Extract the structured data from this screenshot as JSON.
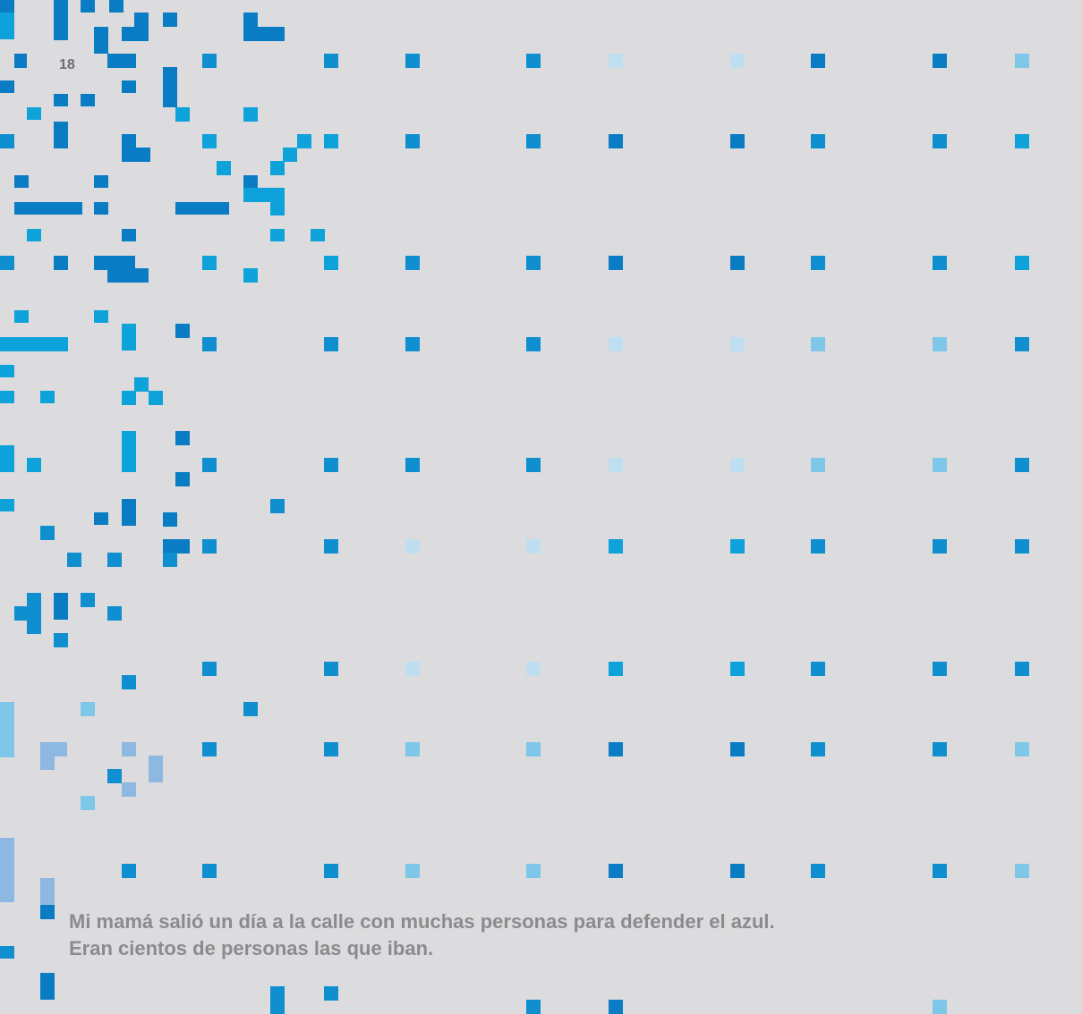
{
  "page_number": "18",
  "caption": {
    "line1": "Mi mamá salió un día a la calle con muchas personas para defender el azul.",
    "line2": "Eran cientos de personas las que iban."
  },
  "palette": {
    "background": "#dcdcde",
    "blue_dark": "#0a7cc4",
    "blue_mid": "#108fd0",
    "cyan": "#0ea2da",
    "sky_light": "#7fc7e9",
    "sky_pale": "#bfdff1",
    "periwinkle": "#8cb8e2",
    "text_gray": "#8a8b8d"
  }
}
